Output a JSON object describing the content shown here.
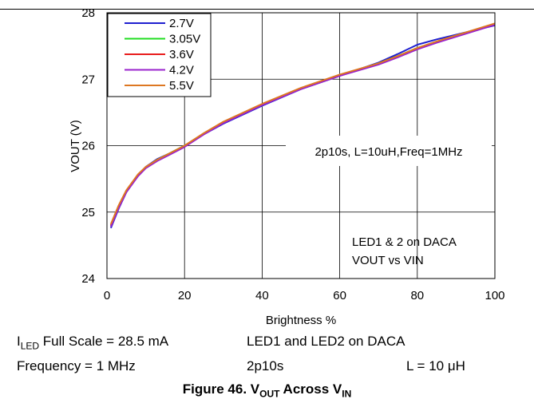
{
  "chart_data": {
    "type": "line",
    "xlabel": "Brightness %",
    "ylabel": "VOUT (V)",
    "xlim": [
      0,
      100
    ],
    "ylim": [
      24,
      28
    ],
    "xticks": [
      "0",
      "20",
      "40",
      "60",
      "80",
      "100"
    ],
    "yticks": [
      "24",
      "25",
      "26",
      "27",
      "28"
    ],
    "grid": true,
    "legend_position": "top-left",
    "annotations": [
      "2p10s, L=10uH,Freq=1MHz",
      "LED1 & 2 on DACA",
      "VOUT vs VIN"
    ],
    "series": [
      {
        "name": "2.7V",
        "color": "#1f1fd0",
        "x": [
          1,
          3,
          5,
          8,
          10,
          13,
          16,
          20,
          25,
          30,
          40,
          50,
          60,
          70,
          75,
          80,
          85,
          90,
          95,
          100
        ],
        "y": [
          24.76,
          25.05,
          25.3,
          25.55,
          25.68,
          25.8,
          25.88,
          26.0,
          26.17,
          26.33,
          26.6,
          26.85,
          27.05,
          27.25,
          27.38,
          27.52,
          27.6,
          27.67,
          27.74,
          27.81
        ]
      },
      {
        "name": "3.05V",
        "color": "#22dd22",
        "x": [
          1,
          3,
          5,
          8,
          10,
          13,
          16,
          20,
          25,
          30,
          40,
          50,
          60,
          70,
          75,
          80,
          85,
          90,
          95,
          100
        ],
        "y": [
          24.79,
          25.07,
          25.31,
          25.55,
          25.67,
          25.79,
          25.88,
          26.0,
          26.18,
          26.35,
          26.62,
          26.86,
          27.06,
          27.24,
          27.35,
          27.47,
          27.56,
          27.65,
          27.74,
          27.83
        ]
      },
      {
        "name": "3.6V",
        "color": "#e81c1c",
        "x": [
          1,
          3,
          5,
          8,
          10,
          13,
          16,
          20,
          25,
          30,
          40,
          50,
          60,
          70,
          75,
          80,
          85,
          90,
          95,
          100
        ],
        "y": [
          24.8,
          25.08,
          25.32,
          25.56,
          25.67,
          25.78,
          25.87,
          25.99,
          26.18,
          26.35,
          26.62,
          26.86,
          27.06,
          27.23,
          27.34,
          27.46,
          27.56,
          27.65,
          27.74,
          27.83
        ]
      },
      {
        "name": "4.2V",
        "color": "#9a22cc",
        "x": [
          1,
          3,
          5,
          8,
          10,
          13,
          16,
          20,
          25,
          30,
          40,
          50,
          60,
          70,
          75,
          80,
          85,
          90,
          95,
          100
        ],
        "y": [
          24.78,
          25.06,
          25.3,
          25.54,
          25.66,
          25.77,
          25.86,
          25.98,
          26.17,
          26.34,
          26.61,
          26.85,
          27.05,
          27.22,
          27.33,
          27.45,
          27.55,
          27.64,
          27.73,
          27.82
        ]
      },
      {
        "name": "5.5V",
        "color": "#dd7722",
        "x": [
          1,
          3,
          5,
          8,
          10,
          13,
          16,
          20,
          25,
          30,
          40,
          50,
          60,
          70,
          75,
          80,
          85,
          90,
          95,
          100
        ],
        "y": [
          24.82,
          25.1,
          25.33,
          25.57,
          25.68,
          25.79,
          25.88,
          26.0,
          26.19,
          26.36,
          26.63,
          26.87,
          27.07,
          27.24,
          27.35,
          27.47,
          27.57,
          27.66,
          27.75,
          27.84
        ]
      }
    ]
  },
  "captions": {
    "line1_left_main": "I",
    "line1_left_sub": "LED",
    "line1_left_rest": " Full Scale = 28.5 mA",
    "line1_mid": "LED1 and LED2 on DACA",
    "line2_left": "Frequency = 1 MHz",
    "line2_mid": "2p10s",
    "line2_right": "L = 10 μH"
  },
  "figure_title": {
    "prefix": "Figure 46. V",
    "sub1": "OUT",
    "middle": " Across V",
    "sub2": "IN"
  }
}
